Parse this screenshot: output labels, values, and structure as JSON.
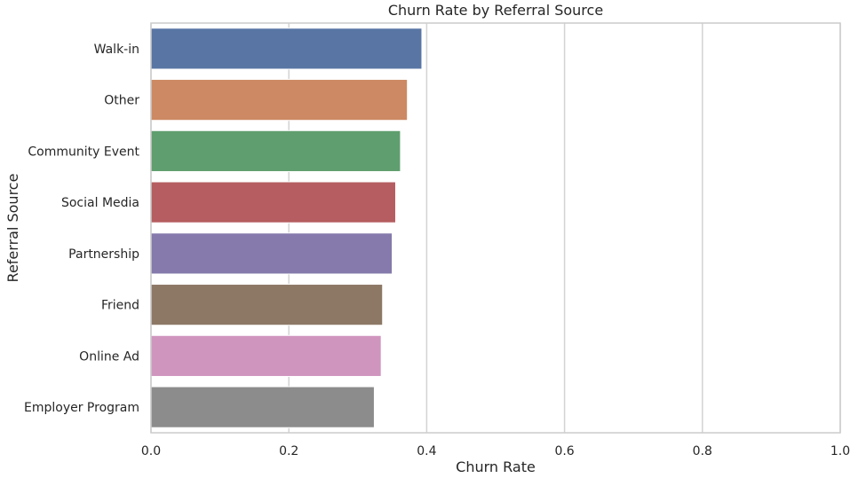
{
  "chart_data": {
    "type": "bar",
    "orientation": "horizontal",
    "title": "Churn Rate by Referral Source",
    "xlabel": "Churn Rate",
    "ylabel": "Referral Source",
    "categories": [
      "Walk-in",
      "Other",
      "Community Event",
      "Social Media",
      "Partnership",
      "Friend",
      "Online Ad",
      "Employer Program"
    ],
    "values": [
      0.393,
      0.372,
      0.362,
      0.355,
      0.35,
      0.336,
      0.334,
      0.324
    ],
    "colors": [
      "#5875a4",
      "#cc8963",
      "#5f9e6e",
      "#b55d60",
      "#857aab",
      "#8d7866",
      "#d095bf",
      "#8c8c8c"
    ],
    "xlim": [
      0,
      1.0
    ],
    "xticks": [
      "0.0",
      "0.2",
      "0.4",
      "0.6",
      "0.8",
      "1.0"
    ],
    "xtick_values": [
      0,
      0.2,
      0.4,
      0.6,
      0.8,
      1.0
    ],
    "grid": "x"
  }
}
